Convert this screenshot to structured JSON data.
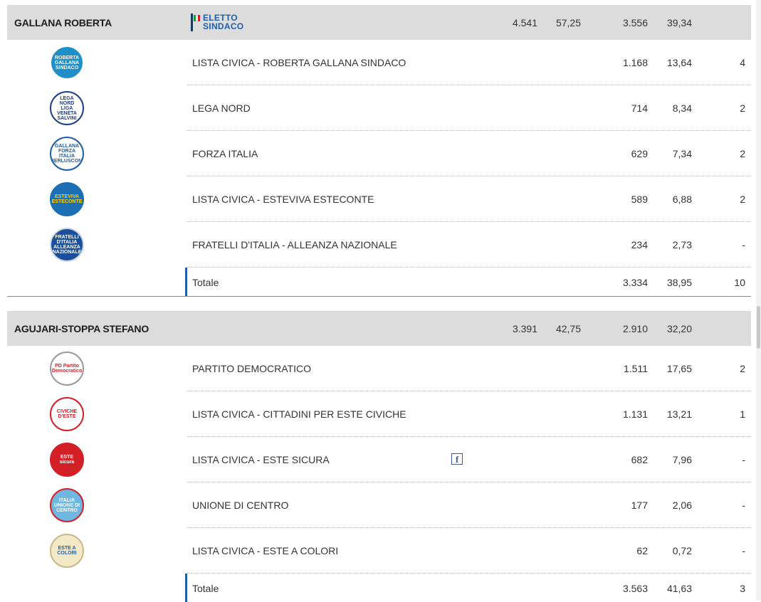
{
  "candidates": [
    {
      "name": "GALLANA ROBERTA",
      "badge": {
        "line1": "ELETTO",
        "line2": "SINDACO"
      },
      "votes": "4.541",
      "pct": "57,25",
      "list_votes": "3.556",
      "list_pct": "39,34",
      "lists": [
        {
          "name": "LISTA CIVICA - ROBERTA GALLANA SINDACO",
          "votes": "1.168",
          "pct": "13,64",
          "seats": "4",
          "logo": {
            "text": "ROBERTA GALLANA SINDACO",
            "icon": "gallana-logo",
            "bg": "#1e8fc8",
            "fg": "#ffffff",
            "border": "#ffffff"
          }
        },
        {
          "name": "LEGA NORD",
          "votes": "714",
          "pct": "8,34",
          "seats": "2",
          "logo": {
            "text": "LEGA NORD LIGA VENETA SALVINI",
            "icon": "lega-nord-logo",
            "bg": "#ffffff",
            "fg": "#1f3f8a",
            "border": "#1f3f8a"
          }
        },
        {
          "name": "FORZA ITALIA",
          "votes": "629",
          "pct": "7,34",
          "seats": "2",
          "logo": {
            "text": "GALLANA FORZA ITALIA BERLUSCONI",
            "icon": "forza-italia-logo",
            "bg": "#ffffff",
            "fg": "#1f5ea8",
            "border": "#1f5ea8"
          }
        },
        {
          "name": "LISTA CIVICA - ESTEVIVA ESTECONTE",
          "votes": "589",
          "pct": "6,88",
          "seats": "2",
          "logo": {
            "text": "ESTEVIVA ESTECONTE",
            "icon": "esteviva-logo",
            "bg": "#1c6fb5",
            "fg": "#ffd200",
            "border": "#1c6fb5"
          }
        },
        {
          "name": "FRATELLI D'ITALIA - ALLEANZA NAZIONALE",
          "votes": "234",
          "pct": "2,73",
          "seats": "-",
          "logo": {
            "text": "FRATELLI D'ITALIA ALLEANZA NAZIONALE",
            "icon": "fratelli-italia-logo",
            "bg": "#1b4f9c",
            "fg": "#ffffff",
            "border": "#cfd6e4"
          }
        }
      ],
      "total": {
        "label": "Totale",
        "votes": "3.334",
        "pct": "38,95",
        "seats": "10"
      }
    },
    {
      "name": "AGUJARI-STOPPA STEFANO",
      "badge": null,
      "votes": "3.391",
      "pct": "42,75",
      "list_votes": "2.910",
      "list_pct": "32,20",
      "lists": [
        {
          "name": "PARTITO DEMOCRATICO",
          "votes": "1.511",
          "pct": "17,65",
          "seats": "2",
          "logo": {
            "text": "PD Partito Democratico",
            "icon": "pd-logo",
            "bg": "#ffffff",
            "fg": "#d32027",
            "border": "#9a9a9a"
          }
        },
        {
          "name": "LISTA CIVICA - CITTADINI PER ESTE CIVICHE",
          "votes": "1.131",
          "pct": "13,21",
          "seats": "1",
          "logo": {
            "text": "CIVICHE D'ESTE",
            "icon": "civiche-logo",
            "bg": "#ffffff",
            "fg": "#d32027",
            "border": "#d32027"
          }
        },
        {
          "name": "LISTA CIVICA - ESTE SICURA",
          "votes": "682",
          "pct": "7,96",
          "seats": "-",
          "social": "facebook-icon",
          "logo": {
            "text": "ESTE sicura",
            "icon": "este-sicura-logo",
            "bg": "#d32027",
            "fg": "#ffffff",
            "border": "#d32027"
          }
        },
        {
          "name": "UNIONE DI CENTRO",
          "votes": "177",
          "pct": "2,06",
          "seats": "-",
          "logo": {
            "text": "ITALIA UNIONE DI CENTRO",
            "icon": "udc-logo",
            "bg": "#6fb7e0",
            "fg": "#ffffff",
            "border": "#d32027"
          }
        },
        {
          "name": "LISTA CIVICA - ESTE A COLORI",
          "votes": "62",
          "pct": "0,72",
          "seats": "-",
          "logo": {
            "text": "ESTE A COLORI",
            "icon": "este-a-colori-logo",
            "bg": "#f3e9c6",
            "fg": "#1f5ea8",
            "border": "#c8b88a"
          }
        }
      ],
      "total": {
        "label": "Totale",
        "votes": "3.563",
        "pct": "41,63",
        "seats": "3"
      }
    }
  ]
}
